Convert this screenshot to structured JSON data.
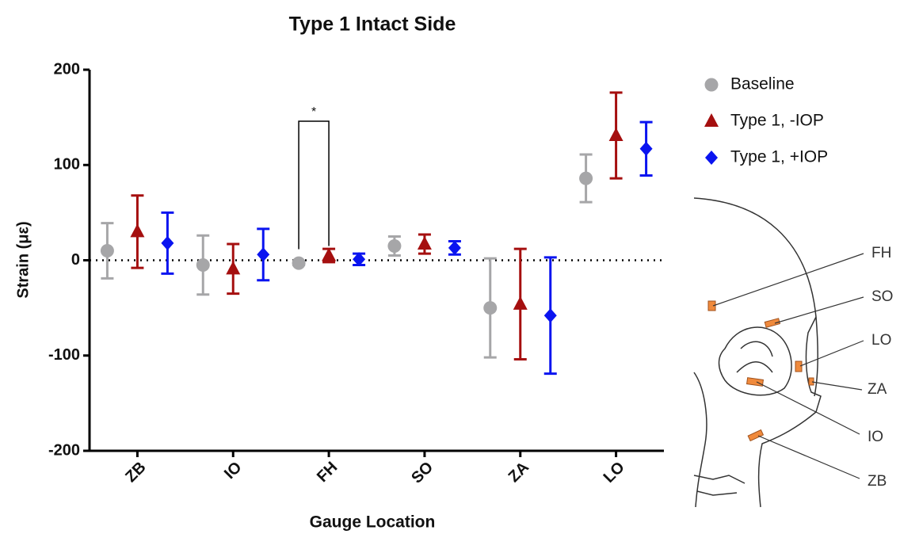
{
  "chart_data": {
    "type": "errorbar",
    "title": "Type 1 Intact Side",
    "x_label": "Gauge Location",
    "y_label": "Strain (με)",
    "categories": [
      "ZB",
      "IO",
      "FH",
      "SO",
      "ZA",
      "LO"
    ],
    "series": [
      {
        "name": "Baseline",
        "color": "#a6a6a8",
        "marker": "circle",
        "values": [
          10,
          -5,
          -3,
          15,
          -50,
          86
        ],
        "errors": [
          29,
          31,
          2,
          10,
          52,
          25
        ]
      },
      {
        "name": "Type 1, -IOP",
        "color": "#a50f0f",
        "marker": "triangle",
        "values": [
          30,
          -9,
          5,
          17,
          -46,
          131
        ],
        "errors": [
          38,
          26,
          7,
          10,
          58,
          45
        ]
      },
      {
        "name": "Type 1, +IOP",
        "color": "#0a14f0",
        "marker": "diamond",
        "values": [
          18,
          6,
          1,
          13,
          -58,
          117
        ],
        "errors": [
          32,
          27,
          6,
          7,
          61,
          28
        ]
      }
    ],
    "ylim": [
      -200,
      200
    ],
    "yticks": [
      -200,
      -100,
      0,
      100,
      200
    ],
    "significance": {
      "text": "*"
    },
    "legend": "right"
  },
  "diagram": {
    "gauge_labels": [
      "FH",
      "SO",
      "LO",
      "ZA",
      "IO",
      "ZB"
    ]
  }
}
